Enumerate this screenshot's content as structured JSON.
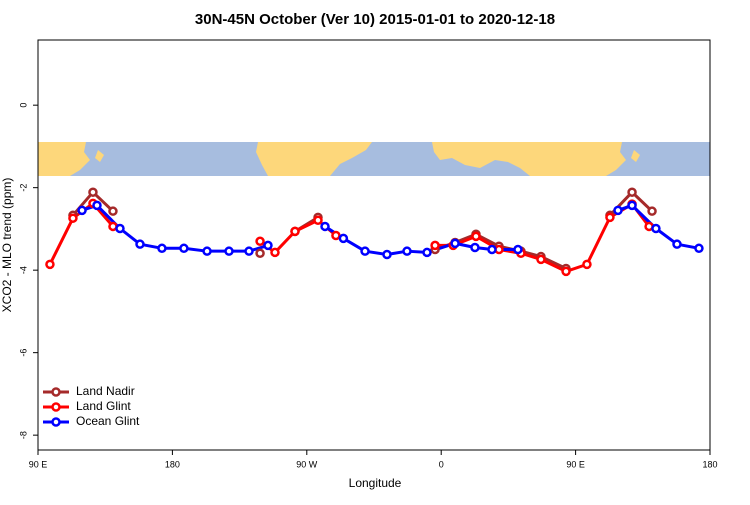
{
  "chart_data": {
    "type": "line",
    "title": "30N-45N October (Ver 10)   2015-01-01 to 2020-12-18",
    "x_label": "Longitude",
    "y_label": "XCO2 - MLO trend (ppm)",
    "xlim": [
      90,
      540
    ],
    "ylim": [
      -8.36,
      1.58
    ],
    "xticks": [
      {
        "value": 90,
        "label": "90 E"
      },
      {
        "value": 180,
        "label": "180"
      },
      {
        "value": 270,
        "label": "90 W"
      },
      {
        "value": 360,
        "label": "0"
      },
      {
        "value": 450,
        "label": "90 E"
      },
      {
        "value": 540,
        "label": "180"
      }
    ],
    "yticks": [
      0,
      -2,
      -4,
      -6,
      -8
    ],
    "legend": "bottom-left",
    "series": [
      {
        "name": "Land Nadir",
        "color": "#a52a2a",
        "x": [
          113.4,
          126.8,
          140.2,
          null,
          238.7,
          null,
          262.1,
          277.5,
          null,
          355.9,
          369.3,
          383.3,
          398.7,
          413.4,
          426.8,
          443.6,
          null,
          473,
          487.8,
          501.2
        ],
        "values": [
          -2.67,
          -2.11,
          -2.57,
          null,
          -3.59,
          null,
          -3.06,
          -2.72,
          null,
          -3.5,
          -3.33,
          -3.13,
          -3.42,
          -3.54,
          -3.67,
          -3.96,
          null,
          -2.67,
          -2.11,
          -2.57
        ]
      },
      {
        "name": "Land Glint",
        "color": "#ff0000",
        "x": [
          98,
          113.4,
          126.8,
          140.2,
          null,
          238.7,
          248.7,
          262.1,
          277.5,
          289.5,
          null,
          355.9,
          368,
          383.3,
          398.7,
          413.4,
          426.8,
          443.6,
          457.6,
          473,
          487.8,
          499.2
        ],
        "values": [
          -3.86,
          -2.74,
          -2.38,
          -2.94,
          null,
          -3.3,
          -3.57,
          -3.06,
          -2.79,
          -3.16,
          null,
          -3.4,
          -3.4,
          -3.18,
          -3.5,
          -3.59,
          -3.74,
          -4.03,
          -3.86,
          -2.72,
          -2.4,
          -2.94
        ]
      },
      {
        "name": "Ocean Glint",
        "color": "#0000ff",
        "x": [
          119.5,
          129.5,
          144.9,
          158.3,
          173,
          187.7,
          203.2,
          217.9,
          231.3,
          244,
          null,
          282.2,
          294.5,
          309,
          323.7,
          337.1,
          350.5,
          369.3,
          382.6,
          394,
          411.4,
          null,
          478.4,
          487.8,
          503.8,
          517.9,
          532.6
        ],
        "values": [
          -2.55,
          -2.43,
          -2.99,
          -3.37,
          -3.47,
          -3.47,
          -3.54,
          -3.54,
          -3.54,
          -3.4,
          null,
          -2.94,
          -3.23,
          -3.54,
          -3.62,
          -3.54,
          -3.57,
          -3.35,
          -3.45,
          -3.5,
          -3.5,
          null,
          -2.55,
          -2.43,
          -2.99,
          -3.37,
          -3.47
        ]
      }
    ]
  }
}
